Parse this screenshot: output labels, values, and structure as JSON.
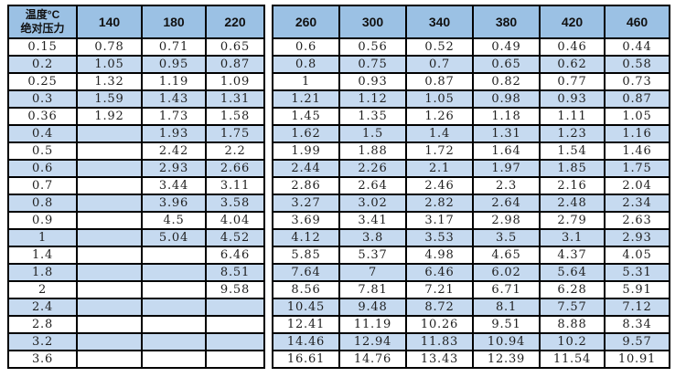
{
  "chart_data": {
    "type": "table",
    "corner_header": {
      "line1": "温度°C",
      "line2": "绝对压力"
    },
    "temperature_columns": [
      "140",
      "180",
      "220",
      "260",
      "300",
      "340",
      "380",
      "420",
      "460"
    ],
    "rows": [
      {
        "pressure": "0.15",
        "values": [
          "0.78",
          "0.71",
          "0.65",
          "0.6",
          "0.56",
          "0.52",
          "0.49",
          "0.46",
          "0.44"
        ]
      },
      {
        "pressure": "0.2",
        "values": [
          "1.05",
          "0.95",
          "0.87",
          "0.8",
          "0.75",
          "0.7",
          "0.65",
          "0.62",
          "0.58"
        ]
      },
      {
        "pressure": "0.25",
        "values": [
          "1.32",
          "1.19",
          "1.09",
          "1",
          "0.93",
          "0.87",
          "0.82",
          "0.77",
          "0.73"
        ]
      },
      {
        "pressure": "0.3",
        "values": [
          "1.59",
          "1.43",
          "1.31",
          "1.21",
          "1.12",
          "1.05",
          "0.98",
          "0.93",
          "0.87"
        ]
      },
      {
        "pressure": "0.36",
        "values": [
          "1.92",
          "1.73",
          "1.58",
          "1.45",
          "1.35",
          "1.26",
          "1.18",
          "1.11",
          "1.05"
        ]
      },
      {
        "pressure": "0.4",
        "values": [
          "",
          "1.93",
          "1.75",
          "1.62",
          "1.5",
          "1.4",
          "1.31",
          "1.23",
          "1.16"
        ]
      },
      {
        "pressure": "0.5",
        "values": [
          "",
          "2.42",
          "2.2",
          "1.99",
          "1.88",
          "1.72",
          "1.64",
          "1.54",
          "1.46"
        ]
      },
      {
        "pressure": "0.6",
        "values": [
          "",
          "2.93",
          "2.66",
          "2.44",
          "2.26",
          "2.1",
          "1.97",
          "1.85",
          "1.75"
        ]
      },
      {
        "pressure": "0.7",
        "values": [
          "",
          "3.44",
          "3.11",
          "2.86",
          "2.64",
          "2.46",
          "2.3",
          "2.16",
          "2.04"
        ]
      },
      {
        "pressure": "0.8",
        "values": [
          "",
          "3.96",
          "3.58",
          "3.27",
          "3.02",
          "2.82",
          "2.64",
          "2.48",
          "2.34"
        ]
      },
      {
        "pressure": "0.9",
        "values": [
          "",
          "4.5",
          "4.04",
          "3.69",
          "3.41",
          "3.17",
          "2.98",
          "2.79",
          "2.63"
        ]
      },
      {
        "pressure": "1",
        "values": [
          "",
          "5.04",
          "4.52",
          "4.12",
          "3.8",
          "3.53",
          "3.5",
          "3.1",
          "2.93"
        ]
      },
      {
        "pressure": "1.4",
        "values": [
          "",
          "",
          "6.46",
          "5.85",
          "5.37",
          "4.98",
          "4.65",
          "4.37",
          "4.05"
        ]
      },
      {
        "pressure": "1.8",
        "values": [
          "",
          "",
          "8.51",
          "7.64",
          "7",
          "6.46",
          "6.02",
          "5.64",
          "5.31"
        ]
      },
      {
        "pressure": "2",
        "values": [
          "",
          "",
          "9.58",
          "8.56",
          "7.81",
          "7.21",
          "6.71",
          "6.28",
          "5.91"
        ]
      },
      {
        "pressure": "2.4",
        "values": [
          "",
          "",
          "",
          "10.45",
          "9.48",
          "8.72",
          "8.1",
          "7.57",
          "7.12"
        ]
      },
      {
        "pressure": "2.8",
        "values": [
          "",
          "",
          "",
          "12.41",
          "11.19",
          "10.26",
          "9.51",
          "8.88",
          "8.34"
        ]
      },
      {
        "pressure": "3.2",
        "values": [
          "",
          "",
          "",
          "14.46",
          "12.94",
          "11.83",
          "10.94",
          "10.2",
          "9.57"
        ]
      },
      {
        "pressure": "3.6",
        "values": [
          "",
          "",
          "",
          "16.61",
          "14.76",
          "13.43",
          "12.39",
          "11.54",
          "10.91"
        ]
      }
    ]
  },
  "colors": {
    "header_bg": "#9BC1E4",
    "stripe_bg": "#C6DAF0",
    "border": "#000000",
    "text": "#1F1F1F"
  }
}
